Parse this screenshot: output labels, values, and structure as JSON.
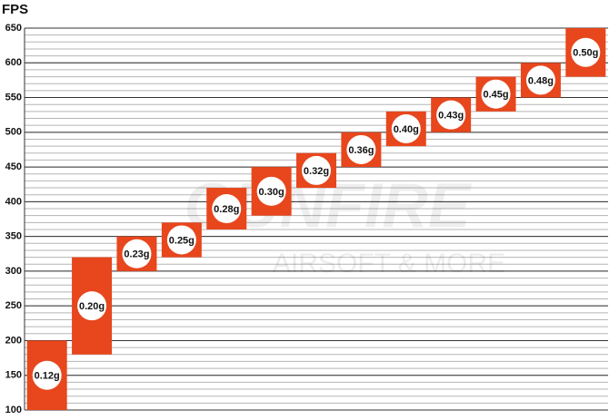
{
  "chart_data": {
    "type": "range",
    "y_label": "FPS",
    "watermark": [
      "GUNFIRE",
      "AIRSOFT & MORE"
    ],
    "categories": [
      "0.12g",
      "0.20g",
      "0.23g",
      "0.25g",
      "0.28g",
      "0.30g",
      "0.32g",
      "0.36g",
      "0.40g",
      "0.43g",
      "0.45g",
      "0.48g",
      "0.50g"
    ],
    "low": [
      100,
      180,
      300,
      320,
      360,
      380,
      420,
      450,
      480,
      500,
      530,
      550,
      580
    ],
    "high": [
      200,
      320,
      350,
      370,
      420,
      450,
      470,
      500,
      530,
      550,
      580,
      600,
      650
    ],
    "color": "#e8461c",
    "ylim": [
      100,
      650
    ],
    "yticks": [
      100,
      150,
      200,
      250,
      300,
      350,
      400,
      450,
      500,
      550,
      600,
      650
    ],
    "grid": true,
    "minor_grid_step": 10
  }
}
